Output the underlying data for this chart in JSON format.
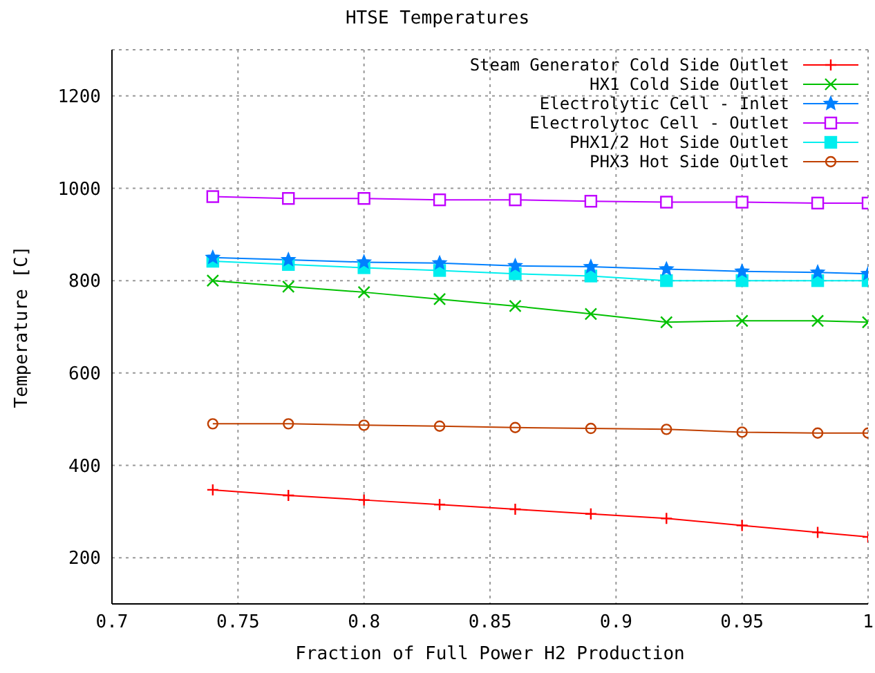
{
  "chart_data": {
    "type": "line",
    "title": "HTSE Temperatures",
    "xlabel": "Fraction of Full Power H2 Production",
    "ylabel": "Temperature [C]",
    "x": [
      0.74,
      0.77,
      0.8,
      0.83,
      0.86,
      0.89,
      0.92,
      0.95,
      0.98,
      1.0
    ],
    "xlim": [
      0.7,
      1.0
    ],
    "xticks": [
      0.7,
      0.75,
      0.8,
      0.85,
      0.9,
      0.95,
      1
    ],
    "ylim": [
      100,
      1300
    ],
    "yticks": [
      200,
      400,
      600,
      800,
      1000,
      1200
    ],
    "grid": true,
    "legend": "top right",
    "series": [
      {
        "name": "Steam Generator Cold Side Outlet",
        "color": "#ff0000",
        "marker": "cross",
        "values": [
          347,
          335,
          325,
          315,
          305,
          295,
          285,
          270,
          255,
          245
        ]
      },
      {
        "name": "HX1 Cold Side Outlet",
        "color": "#00c000",
        "marker": "cross",
        "values": [
          800,
          787,
          775,
          760,
          745,
          728,
          710,
          713,
          713,
          710
        ]
      },
      {
        "name": "Electrolytic Cell - Inlet",
        "color": "#0080ff",
        "marker": "star",
        "values": [
          850,
          845,
          840,
          838,
          832,
          830,
          825,
          820,
          818,
          815
        ]
      },
      {
        "name": "Electrolytoc Cell - Outlet",
        "color": "#c000ff",
        "marker": "square",
        "values": [
          982,
          978,
          978,
          975,
          975,
          972,
          970,
          970,
          968,
          968
        ]
      },
      {
        "name": "PHX1/2 Hot Side Outlet",
        "color": "#00eeee",
        "marker": "square",
        "values": [
          842,
          835,
          828,
          822,
          815,
          810,
          800,
          800,
          800,
          800
        ]
      },
      {
        "name": "PHX3 Hot Side Outlet",
        "color": "#c04000",
        "marker": "circle",
        "values": [
          490,
          490,
          487,
          485,
          482,
          480,
          478,
          472,
          470,
          470
        ]
      }
    ]
  }
}
